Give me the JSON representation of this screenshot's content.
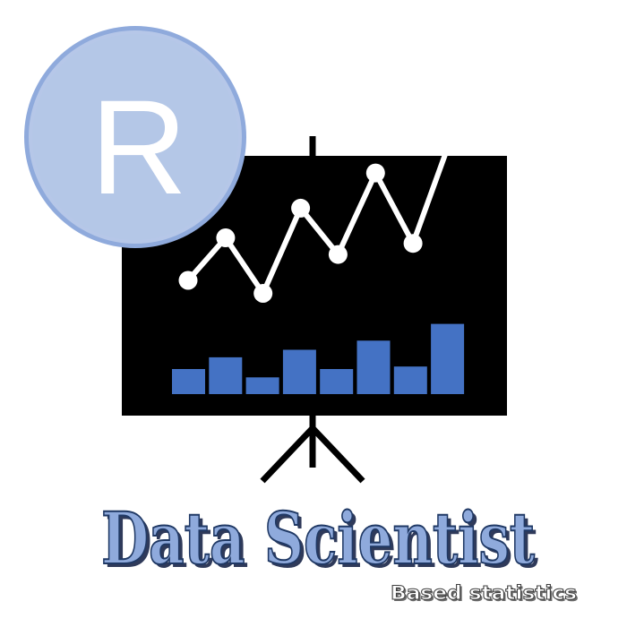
{
  "logo": {
    "letter": "R"
  },
  "title": "Data Scientist",
  "subtitle": "Based statistics",
  "colors": {
    "background": "#ffffff",
    "board": "#000000",
    "bar": "#4472c4",
    "line": "#ffffff",
    "badge_fill": "#b4c7e7",
    "badge_ring": "#8faadc",
    "badge_letter": "#ffffff",
    "title_fill": "#8faadc",
    "title_outline": "#1f3864",
    "subtitle_fill": "#ffffff",
    "subtitle_outline": "#404040"
  },
  "icons": [
    "r-logo-badge-icon",
    "presentation-board-icon",
    "line-chart-icon",
    "bar-chart-icon",
    "tripod-stand-icon"
  ],
  "chart_data": [
    {
      "type": "line",
      "x": [
        1,
        2,
        3,
        4,
        5,
        6,
        7,
        8
      ],
      "values": [
        3,
        5.3,
        2.3,
        6.9,
        4.4,
        8.8,
        5,
        10.6
      ],
      "ylim": [
        0,
        12
      ]
    },
    {
      "type": "bar",
      "categories": [
        "1",
        "2",
        "3",
        "4",
        "5",
        "6",
        "7",
        "8"
      ],
      "values": [
        3,
        4.4,
        2,
        5.3,
        3,
        6.4,
        3.3,
        8.4
      ],
      "ylim": [
        0,
        9
      ]
    }
  ]
}
